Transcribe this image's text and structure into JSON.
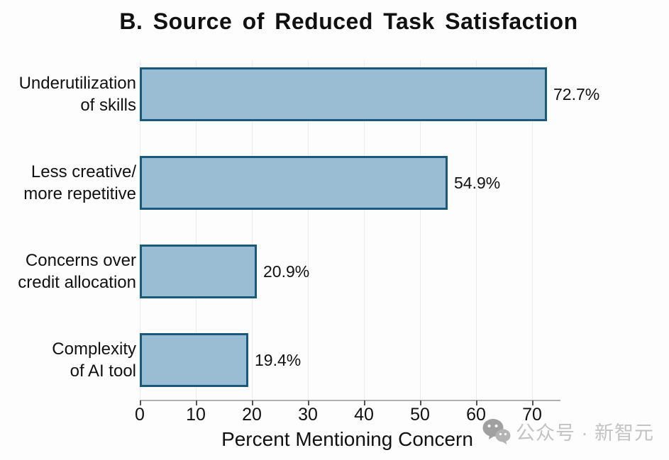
{
  "chart_data": {
    "type": "bar",
    "orientation": "horizontal",
    "title": "B. Source of Reduced Task Satisfaction",
    "xlabel": "Percent Mentioning Concern",
    "categories": [
      "Underutilization of skills",
      "Less creative/ more repetitive",
      "Concerns over credit allocation",
      "Complexity of AI tool"
    ],
    "values": [
      72.7,
      54.9,
      20.9,
      19.4
    ],
    "rows": [
      {
        "label1": "Underutilization",
        "label2": "of skills",
        "value": 72.7,
        "value_label": "72.7%"
      },
      {
        "label1": "Less creative/",
        "label2": "more repetitive",
        "value": 54.9,
        "value_label": "54.9%"
      },
      {
        "label1": "Concerns over",
        "label2": "credit allocation",
        "value": 20.9,
        "value_label": "20.9%"
      },
      {
        "label1": "Complexity",
        "label2": "of AI tool",
        "value": 19.4,
        "value_label": "19.4%"
      }
    ],
    "x_ticks": [
      0,
      10,
      20,
      30,
      40,
      50,
      60,
      70
    ],
    "xlim": [
      0,
      75
    ],
    "grid": true,
    "legend": null,
    "bar_fill_color": "#9abdd3",
    "bar_border_color": "#175a7e"
  },
  "watermark": {
    "icon": "wechat-icon",
    "text": "公众号 · 新智元"
  }
}
